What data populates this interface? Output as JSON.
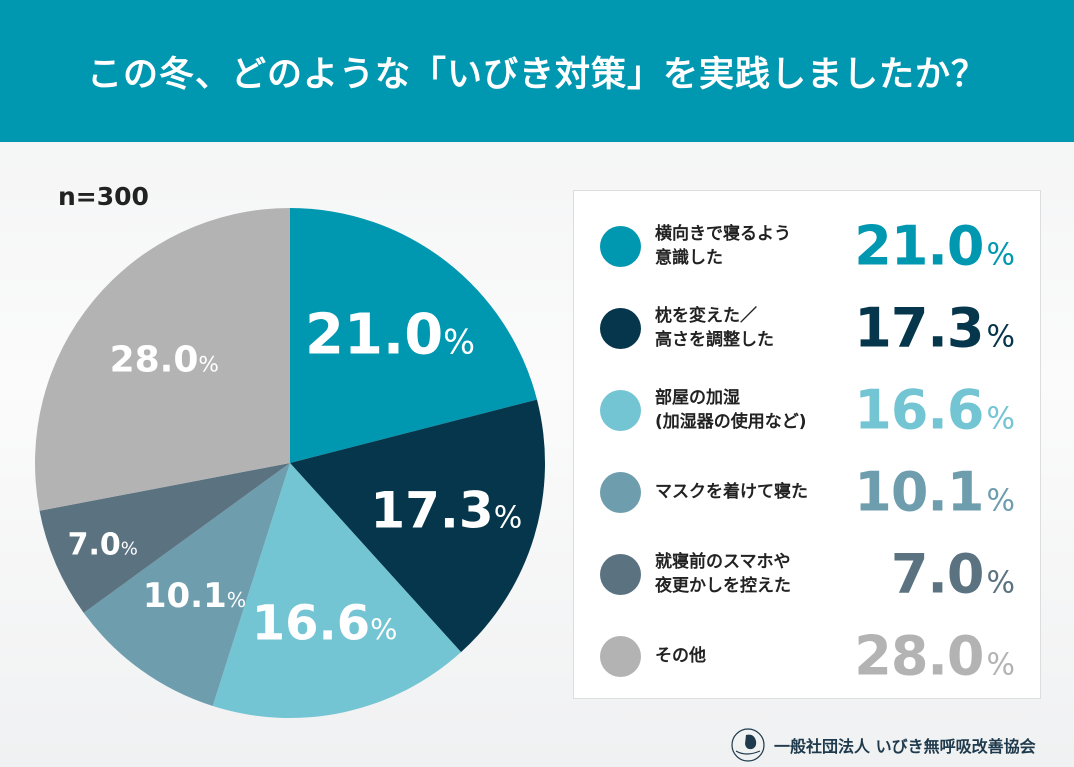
{
  "header": {
    "title": "この冬、どのような「いびき対策」を実践しましたか？"
  },
  "sample": "n=300",
  "chart_data": {
    "type": "pie",
    "title": "この冬、どのような「いびき対策」を実践しましたか？",
    "sample_size": "n=300",
    "start": "top",
    "direction": "clockwise",
    "slices": [
      {
        "label": "横向きで寝るよう\n意識した",
        "value": 21.0,
        "display": "21.0",
        "color": "#0097b0"
      },
      {
        "label": "枕を変えた／\n高さを調整した",
        "value": 17.3,
        "display": "17.3",
        "color": "#05364b"
      },
      {
        "label": "部屋の加湿\n(加湿器の使用など)",
        "value": 16.6,
        "display": "16.6",
        "color": "#74c5d3"
      },
      {
        "label": "マスクを着けて寝た",
        "value": 10.1,
        "display": "10.1",
        "color": "#6e9dae"
      },
      {
        "label": "就寝前のスマホや\n夜更かしを控えた",
        "value": 7.0,
        "display": "7.0",
        "color": "#5b7280"
      },
      {
        "label": "その他",
        "value": 28.0,
        "display": "28.0",
        "color": "#b3b3b3"
      }
    ],
    "unit": "%",
    "legend_placement": "right"
  },
  "footer": {
    "org": "一般社団法人 いびき無呼吸改善協会"
  }
}
